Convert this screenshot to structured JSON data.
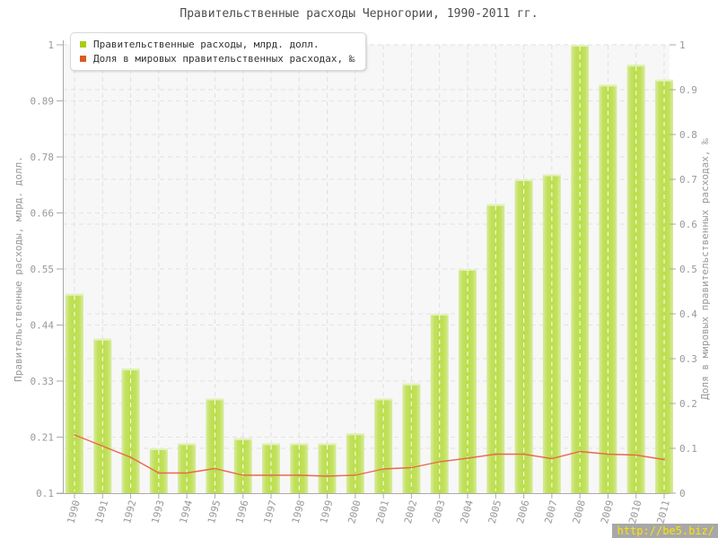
{
  "title": "Правительственные расходы Черногории, 1990-2011 гг.",
  "watermark": "http://be5.biz/",
  "legend": {
    "position": "top-left",
    "items": [
      {
        "label": "Правительственные расходы, млрд. долл.",
        "color": "#a8cc14"
      },
      {
        "label": "Доля в мировых правительственных расходах, ‰",
        "color": "#dd5a22"
      }
    ]
  },
  "chart_data": {
    "type": "bar",
    "title": "Правительственные расходы Черногории, 1990-2011 гг.",
    "categories": [
      "1990",
      "1991",
      "1992",
      "1993",
      "1994",
      "1995",
      "1996",
      "1997",
      "1998",
      "1999",
      "2000",
      "2001",
      "2002",
      "2003",
      "2004",
      "2005",
      "2006",
      "2007",
      "2008",
      "2009",
      "2010",
      "2011"
    ],
    "series": [
      {
        "name": "Правительственные расходы, млрд. долл.",
        "type": "bar",
        "axis": "left",
        "values": [
          0.5,
          0.41,
          0.35,
          0.19,
          0.2,
          0.29,
          0.21,
          0.2,
          0.2,
          0.2,
          0.22,
          0.29,
          0.32,
          0.46,
          0.55,
          0.68,
          0.73,
          0.74,
          1.0,
          0.92,
          0.96,
          0.93
        ]
      },
      {
        "name": "Доля в мировых правительственных расходах, ‰",
        "type": "line",
        "axis": "right",
        "values": [
          0.13,
          0.105,
          0.08,
          0.045,
          0.045,
          0.055,
          0.04,
          0.04,
          0.04,
          0.038,
          0.04,
          0.054,
          0.057,
          0.07,
          0.078,
          0.087,
          0.087,
          0.077,
          0.093,
          0.087,
          0.085,
          0.075
        ]
      }
    ],
    "left_axis": {
      "label": "Правительственные расходы, млрд. долл.",
      "min": 0.1,
      "max": 1,
      "tick_labels": [
        "1",
        "0.89",
        "0.78",
        "0.66",
        "0.55",
        "0.44",
        "0.33",
        "0.21",
        "0.1"
      ]
    },
    "right_axis": {
      "label": "Доля в мировых правительственных расходах, ‰",
      "min": 0,
      "max": 1,
      "tick_labels": [
        "1",
        "0.9",
        "0.8",
        "0.7",
        "0.6",
        "0.5",
        "0.4",
        "0.3",
        "0.2",
        "0.1",
        "0"
      ]
    },
    "grid": true,
    "legend_position": "top-left"
  },
  "colors": {
    "bar_center": "#bade49",
    "bar_mid": "#c3e160",
    "bar_edge": "#d8ec9e",
    "bar_cap": "#e4f1bb",
    "line": "#e8694d",
    "grid": "#e2e2e2",
    "axis": "#aaaaaa",
    "tick_label": "#999999",
    "title_text": "#4d4d4d",
    "plot_bg": "#f7f7f7",
    "watermark_bg": "#a8a8a8",
    "watermark_text": "#ffe400"
  }
}
